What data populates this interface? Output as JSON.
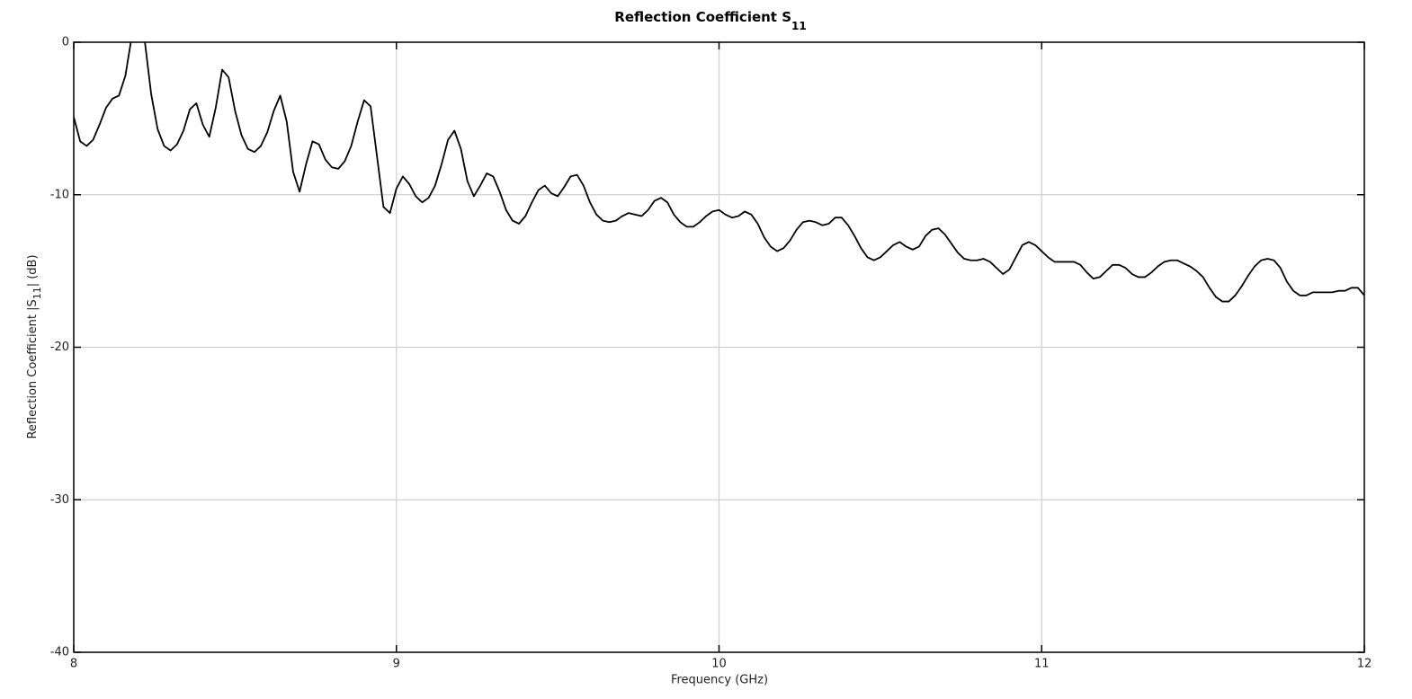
{
  "chart_data": {
    "type": "line",
    "title": [
      "Reflection Coefficient S",
      "11"
    ],
    "xlabel": "Frequency (GHz)",
    "ylabel": [
      "Reflection Coefficient |S",
      "11",
      "| (dB)"
    ],
    "x": [
      8,
      8.02,
      8.04,
      8.06,
      8.08,
      8.1,
      8.12,
      8.14,
      8.16,
      8.18,
      8.2,
      8.22,
      8.24,
      8.26,
      8.28,
      8.3,
      8.32,
      8.34,
      8.36,
      8.38,
      8.4,
      8.42,
      8.44,
      8.46,
      8.48,
      8.5,
      8.52,
      8.54,
      8.56,
      8.58,
      8.6,
      8.62,
      8.64,
      8.66,
      8.68,
      8.7,
      8.72,
      8.74,
      8.76,
      8.78,
      8.8,
      8.82,
      8.84,
      8.86,
      8.88,
      8.9,
      8.92,
      8.94,
      8.96,
      8.98,
      9,
      9.02,
      9.04,
      9.06,
      9.08,
      9.1,
      9.12,
      9.14,
      9.16,
      9.18,
      9.2,
      9.22,
      9.24,
      9.26,
      9.28,
      9.3,
      9.32,
      9.34,
      9.36,
      9.38,
      9.4,
      9.42,
      9.44,
      9.46,
      9.48,
      9.5,
      9.52,
      9.54,
      9.56,
      9.58,
      9.6,
      9.62,
      9.64,
      9.66,
      9.68,
      9.7,
      9.72,
      9.74,
      9.76,
      9.78,
      9.8,
      9.82,
      9.84,
      9.86,
      9.88,
      9.9,
      9.92,
      9.94,
      9.96,
      9.98,
      10,
      10.02,
      10.04,
      10.06,
      10.08,
      10.1,
      10.12,
      10.14,
      10.16,
      10.18,
      10.2,
      10.22,
      10.24,
      10.26,
      10.28,
      10.3,
      10.32,
      10.34,
      10.36,
      10.38,
      10.4,
      10.42,
      10.44,
      10.46,
      10.48,
      10.5,
      10.52,
      10.54,
      10.56,
      10.58,
      10.6,
      10.62,
      10.64,
      10.66,
      10.68,
      10.7,
      10.72,
      10.74,
      10.76,
      10.78,
      10.8,
      10.82,
      10.84,
      10.86,
      10.88,
      10.9,
      10.92,
      10.94,
      10.96,
      10.98,
      11,
      11.02,
      11.04,
      11.06,
      11.08,
      11.1,
      11.12,
      11.14,
      11.16,
      11.18,
      11.2,
      11.22,
      11.24,
      11.26,
      11.28,
      11.3,
      11.32,
      11.34,
      11.36,
      11.38,
      11.4,
      11.42,
      11.44,
      11.46,
      11.48,
      11.5,
      11.52,
      11.54,
      11.56,
      11.58,
      11.6,
      11.62,
      11.64,
      11.66,
      11.68,
      11.7,
      11.72,
      11.74,
      11.76,
      11.78,
      11.8,
      11.82,
      11.84,
      11.86,
      11.88,
      11.9,
      11.92,
      11.94,
      11.96,
      11.98,
      12
    ],
    "series": [
      {
        "color": "#000000",
        "values": [
          -4.9,
          -6.5,
          -6.8,
          -6.4,
          -5.4,
          -4.3,
          -3.7,
          -3.5,
          -2.2,
          0.4,
          1.3,
          0.1,
          -3.4,
          -5.7,
          -6.8,
          -7.1,
          -6.7,
          -5.8,
          -4.4,
          -4.0,
          -5.4,
          -6.2,
          -4.3,
          -1.8,
          -2.3,
          -4.5,
          -6.1,
          -7.0,
          -7.2,
          -6.8,
          -5.9,
          -4.5,
          -3.5,
          -5.2,
          -8.5,
          -9.8,
          -8.0,
          -6.5,
          -6.7,
          -7.7,
          -8.2,
          -8.3,
          -7.8,
          -6.8,
          -5.2,
          -3.8,
          -4.2,
          -7.5,
          -10.8,
          -11.2,
          -9.6,
          -8.8,
          -9.3,
          -10.1,
          -10.5,
          -10.2,
          -9.4,
          -8.0,
          -6.4,
          -5.8,
          -7.0,
          -9.1,
          -10.1,
          -9.4,
          -8.6,
          -8.8,
          -9.8,
          -11.0,
          -11.7,
          -11.9,
          -11.4,
          -10.5,
          -9.7,
          -9.4,
          -9.9,
          -10.1,
          -9.5,
          -8.8,
          -8.7,
          -9.4,
          -10.5,
          -11.3,
          -11.7,
          -11.8,
          -11.7,
          -11.4,
          -11.2,
          -11.3,
          -11.4,
          -11.0,
          -10.4,
          -10.2,
          -10.5,
          -11.3,
          -11.8,
          -12.1,
          -12.1,
          -11.8,
          -11.4,
          -11.1,
          -11.0,
          -11.3,
          -11.5,
          -11.4,
          -11.1,
          -11.3,
          -11.9,
          -12.8,
          -13.4,
          -13.7,
          -13.5,
          -13.0,
          -12.3,
          -11.8,
          -11.7,
          -11.8,
          -12.0,
          -11.9,
          -11.5,
          -11.5,
          -12.0,
          -12.7,
          -13.5,
          -14.1,
          -14.3,
          -14.1,
          -13.7,
          -13.3,
          -13.1,
          -13.4,
          -13.6,
          -13.4,
          -12.7,
          -12.3,
          -12.2,
          -12.6,
          -13.2,
          -13.8,
          -14.2,
          -14.3,
          -14.3,
          -14.2,
          -14.4,
          -14.8,
          -15.2,
          -14.9,
          -14.1,
          -13.3,
          -13.1,
          -13.3,
          -13.7,
          -14.1,
          -14.4,
          -14.4,
          -14.4,
          -14.4,
          -14.6,
          -15.1,
          -15.5,
          -15.4,
          -15.0,
          -14.6,
          -14.6,
          -14.8,
          -15.2,
          -15.4,
          -15.4,
          -15.1,
          -14.7,
          -14.4,
          -14.3,
          -14.3,
          -14.5,
          -14.7,
          -15.0,
          -15.4,
          -16.1,
          -16.7,
          -17.0,
          -17.0,
          -16.6,
          -16.0,
          -15.3,
          -14.7,
          -14.3,
          -14.2,
          -14.3,
          -14.8,
          -15.7,
          -16.3,
          -16.6,
          -16.6,
          -16.4,
          -16.4,
          -16.4,
          -16.4,
          -16.3,
          -16.3,
          -16.1,
          -16.1,
          -16.6
        ]
      }
    ],
    "xlim": [
      8,
      12
    ],
    "xticks": [
      8,
      9,
      10,
      11,
      12
    ],
    "ylim": [
      -40,
      0
    ],
    "yticks": [
      -40,
      -30,
      -20,
      -10,
      0
    ],
    "grid": true
  }
}
